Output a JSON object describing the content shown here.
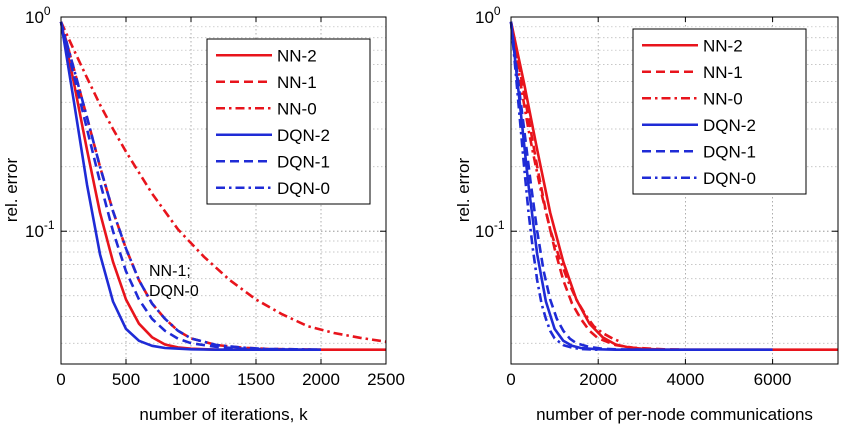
{
  "chart_data": [
    {
      "type": "line",
      "title": "",
      "xlabel": "number of iterations, k",
      "ylabel": "rel. error",
      "xlim": [
        0,
        2500
      ],
      "ylim": [
        0.024,
        1
      ],
      "yscale": "log",
      "grid": true,
      "legend_position": "top-right",
      "xticks": [
        0,
        500,
        1000,
        1500,
        2000,
        2500
      ],
      "yticks": [
        {
          "value": 1,
          "base": "10",
          "exp": "0"
        },
        {
          "value": 0.1,
          "base": "10",
          "exp": "-1"
        }
      ],
      "annotation": [
        "NN-1;",
        "DQN-0"
      ],
      "series": [
        {
          "name": "NN-2",
          "color": "#e8141c",
          "dash": "solid",
          "x": [
            0,
            100,
            200,
            300,
            400,
            500,
            600,
            700,
            800,
            900,
            1000,
            1200,
            1400,
            1600,
            1800,
            2000,
            2500
          ],
          "y": [
            0.95,
            0.49,
            0.24,
            0.122,
            0.072,
            0.048,
            0.037,
            0.032,
            0.0296,
            0.0287,
            0.0283,
            0.028,
            0.028,
            0.028,
            0.028,
            0.028,
            0.028
          ]
        },
        {
          "name": "NN-1",
          "color": "#e8141c",
          "dash": "dashed",
          "x": [
            0,
            100,
            200,
            300,
            400,
            500,
            600,
            700,
            800,
            900,
            1000,
            1200,
            1400,
            1600,
            1800,
            2000
          ],
          "y": [
            0.95,
            0.57,
            0.34,
            0.2,
            0.124,
            0.083,
            0.059,
            0.046,
            0.039,
            0.0343,
            0.0316,
            0.0294,
            0.0286,
            0.0282,
            0.0281,
            0.028
          ]
        },
        {
          "name": "NN-0",
          "color": "#e8141c",
          "dash": "dashdot",
          "x": [
            0,
            100,
            200,
            300,
            400,
            500,
            700,
            900,
            1100,
            1300,
            1500,
            1700,
            1900,
            2100,
            2300,
            2500
          ],
          "y": [
            0.95,
            0.7,
            0.52,
            0.39,
            0.3,
            0.235,
            0.15,
            0.102,
            0.076,
            0.059,
            0.048,
            0.041,
            0.036,
            0.0335,
            0.0318,
            0.0305
          ]
        },
        {
          "name": "DQN-2",
          "color": "#1f2bd6",
          "dash": "solid",
          "x": [
            0,
            100,
            200,
            300,
            400,
            500,
            600,
            700,
            800,
            1000,
            1200,
            1500,
            2000
          ],
          "y": [
            0.95,
            0.4,
            0.165,
            0.078,
            0.047,
            0.035,
            0.0308,
            0.0292,
            0.0285,
            0.0281,
            0.028,
            0.028,
            0.028
          ]
        },
        {
          "name": "DQN-1",
          "color": "#1f2bd6",
          "dash": "dashed",
          "x": [
            0,
            100,
            200,
            300,
            400,
            500,
            600,
            700,
            800,
            900,
            1000,
            1200,
            1400,
            1600,
            1800,
            2000
          ],
          "y": [
            0.95,
            0.53,
            0.3,
            0.17,
            0.1,
            0.065,
            0.048,
            0.039,
            0.0343,
            0.0315,
            0.03,
            0.0288,
            0.0283,
            0.0281,
            0.028,
            0.028
          ]
        },
        {
          "name": "DQN-0",
          "color": "#1f2bd6",
          "dash": "dashdot",
          "x": [
            0,
            100,
            200,
            300,
            400,
            500,
            600,
            700,
            800,
            900,
            1000,
            1200,
            1400,
            1600,
            1800,
            2000
          ],
          "y": [
            0.95,
            0.57,
            0.34,
            0.2,
            0.124,
            0.083,
            0.059,
            0.046,
            0.039,
            0.0343,
            0.0316,
            0.0294,
            0.0286,
            0.0282,
            0.0281,
            0.028
          ]
        }
      ]
    },
    {
      "type": "line",
      "title": "",
      "xlabel": "number of per-node communications",
      "ylabel": "rel. error",
      "xlim": [
        0,
        7500
      ],
      "ylim": [
        0.024,
        1
      ],
      "yscale": "log",
      "grid": true,
      "legend_position": "top-right",
      "xticks": [
        0,
        2000,
        4000,
        6000
      ],
      "yticks": [
        {
          "value": 1,
          "base": "10",
          "exp": "0"
        },
        {
          "value": 0.1,
          "base": "10",
          "exp": "-1"
        }
      ],
      "series": [
        {
          "name": "NN-2",
          "color": "#e8141c",
          "dash": "solid",
          "x": [
            0,
            300,
            600,
            900,
            1200,
            1500,
            1800,
            2100,
            2400,
            2700,
            3000,
            3500,
            4000,
            5000,
            6000,
            7500
          ],
          "y": [
            0.95,
            0.49,
            0.24,
            0.122,
            0.072,
            0.048,
            0.037,
            0.032,
            0.0296,
            0.0287,
            0.0283,
            0.028,
            0.028,
            0.028,
            0.028,
            0.028
          ]
        },
        {
          "name": "NN-1",
          "color": "#e8141c",
          "dash": "dashed",
          "x": [
            0,
            200,
            400,
            600,
            800,
            1000,
            1200,
            1400,
            1600,
            1800,
            2000,
            2400,
            2800,
            3500,
            4000
          ],
          "y": [
            0.95,
            0.57,
            0.34,
            0.2,
            0.124,
            0.083,
            0.059,
            0.046,
            0.039,
            0.0343,
            0.0316,
            0.0294,
            0.0286,
            0.0281,
            0.028
          ]
        },
        {
          "name": "NN-0",
          "color": "#e8141c",
          "dash": "dashdot",
          "x": [
            0,
            100,
            200,
            300,
            400,
            500,
            700,
            900,
            1100,
            1300,
            1500,
            1700,
            1900,
            2100,
            2300,
            2500
          ],
          "y": [
            0.95,
            0.7,
            0.52,
            0.39,
            0.3,
            0.235,
            0.15,
            0.102,
            0.076,
            0.059,
            0.048,
            0.041,
            0.036,
            0.0335,
            0.0318,
            0.0305
          ]
        },
        {
          "name": "DQN-2",
          "color": "#1f2bd6",
          "dash": "solid",
          "x": [
            0,
            200,
            400,
            600,
            800,
            1000,
            1200,
            1400,
            1600,
            2000,
            2400,
            3000,
            4000,
            6000
          ],
          "y": [
            0.95,
            0.4,
            0.165,
            0.078,
            0.047,
            0.035,
            0.0308,
            0.0292,
            0.0285,
            0.0281,
            0.028,
            0.028,
            0.028,
            0.028
          ]
        },
        {
          "name": "DQN-1",
          "color": "#1f2bd6",
          "dash": "dashed",
          "x": [
            0,
            150,
            300,
            450,
            600,
            750,
            900,
            1050,
            1200,
            1350,
            1500,
            1800,
            2100,
            2400,
            3000
          ],
          "y": [
            0.95,
            0.53,
            0.3,
            0.17,
            0.1,
            0.065,
            0.048,
            0.039,
            0.0343,
            0.0315,
            0.03,
            0.0288,
            0.0283,
            0.0281,
            0.028
          ]
        },
        {
          "name": "DQN-0",
          "color": "#1f2bd6",
          "dash": "dashdot",
          "x": [
            0,
            100,
            200,
            300,
            400,
            500,
            600,
            700,
            800,
            900,
            1000,
            1200,
            1400,
            1600,
            2000
          ],
          "y": [
            0.95,
            0.57,
            0.34,
            0.2,
            0.124,
            0.083,
            0.059,
            0.046,
            0.039,
            0.0343,
            0.0316,
            0.0294,
            0.0286,
            0.0282,
            0.028
          ]
        }
      ]
    }
  ]
}
